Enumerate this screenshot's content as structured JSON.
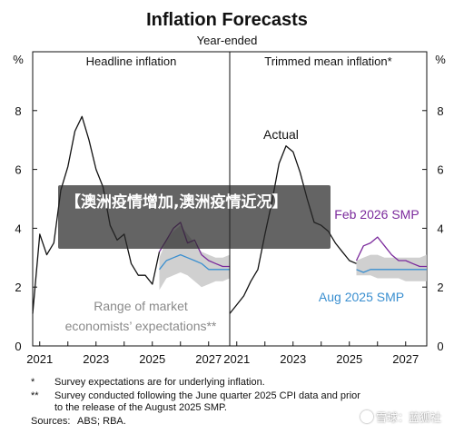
{
  "title": "Inflation Forecasts",
  "subtitle": "Year-ended",
  "unit_left": "%",
  "unit_right": "%",
  "footnotes": [
    {
      "mark": "*",
      "text": "Survey expectations are for underlying inflation."
    },
    {
      "mark": "**",
      "text": "Survey conducted following the June quarter 2025 CPI data and prior"
    },
    {
      "mark": "",
      "text": "to the release of the August 2025 SMP."
    },
    {
      "mark": "Sources:",
      "text": "ABS; RBA."
    }
  ],
  "banner": {
    "text": "【澳洲疫情增加,澳洲疫情近况】"
  },
  "watermark": {
    "text": "雪球：蓝狐社"
  },
  "colors": {
    "actual": "#111111",
    "feb": "#7b2a9c",
    "aug": "#3a8fd0",
    "range": "#c8c8c8",
    "annotation": "#8a8a8a"
  },
  "chart_data": [
    {
      "type": "line",
      "title": "Headline inflation",
      "xlim": [
        2020.75,
        2027.75
      ],
      "ylim": [
        0,
        10
      ],
      "yticks": [
        0,
        2,
        4,
        6,
        8
      ],
      "xticks": [
        2021,
        2023,
        2025,
        2027
      ],
      "grid": false,
      "annotations": [
        "Range of market",
        "economists’ expectations**"
      ],
      "range": {
        "x": [
          2025.25,
          2025.5,
          2025.75,
          2026.0,
          2026.25,
          2026.5,
          2026.75,
          2027.0,
          2027.25,
          2027.5,
          2027.75
        ],
        "low": [
          1.9,
          2.3,
          2.4,
          2.5,
          2.4,
          2.2,
          2.0,
          2.1,
          2.2,
          2.2,
          2.3
        ],
        "high": [
          3.0,
          3.6,
          3.9,
          4.1,
          3.8,
          3.5,
          3.2,
          3.1,
          3.0,
          3.0,
          3.1
        ]
      },
      "series": [
        {
          "key": "actual",
          "x": [
            2020.75,
            2021.0,
            2021.25,
            2021.5,
            2021.75,
            2022.0,
            2022.25,
            2022.5,
            2022.75,
            2023.0,
            2023.25,
            2023.5,
            2023.75,
            2024.0,
            2024.25,
            2024.5,
            2024.75,
            2025.0,
            2025.25
          ],
          "values": [
            1.1,
            3.8,
            3.1,
            3.5,
            5.3,
            6.1,
            7.3,
            7.8,
            7.0,
            6.0,
            5.4,
            4.1,
            3.6,
            3.8,
            2.8,
            2.4,
            2.4,
            2.1,
            3.2
          ]
        },
        {
          "key": "feb",
          "x": [
            2025.25,
            2025.5,
            2025.75,
            2026.0,
            2026.25,
            2026.5,
            2026.75,
            2027.0,
            2027.25,
            2027.5,
            2027.75
          ],
          "values": [
            3.2,
            3.6,
            4.0,
            4.2,
            3.5,
            3.6,
            3.1,
            2.9,
            2.8,
            2.7,
            2.7
          ]
        },
        {
          "key": "aug",
          "x": [
            2025.25,
            2025.5,
            2025.75,
            2026.0,
            2026.25,
            2026.5,
            2026.75,
            2027.0,
            2027.25,
            2027.5,
            2027.75
          ],
          "values": [
            2.6,
            2.9,
            3.0,
            3.1,
            3.0,
            2.9,
            2.8,
            2.6,
            2.6,
            2.6,
            2.6
          ]
        }
      ]
    },
    {
      "type": "line",
      "title": "Trimmed mean inflation*",
      "xlim": [
        2020.75,
        2027.75
      ],
      "ylim": [
        0,
        10
      ],
      "yticks": [
        0,
        2,
        4,
        6,
        8
      ],
      "xticks": [
        2021,
        2023,
        2025,
        2027
      ],
      "grid": false,
      "annotations": [
        "Actual"
      ],
      "range": {
        "x": [
          2025.25,
          2025.5,
          2025.75,
          2026.0,
          2026.25,
          2026.5,
          2026.75,
          2027.0,
          2027.25,
          2027.5,
          2027.75
        ],
        "low": [
          2.4,
          2.4,
          2.4,
          2.3,
          2.3,
          2.3,
          2.3,
          2.2,
          2.2,
          2.2,
          2.2
        ],
        "high": [
          2.9,
          3.0,
          3.1,
          3.1,
          3.0,
          3.0,
          3.0,
          3.0,
          3.0,
          3.0,
          3.1
        ]
      },
      "series": [
        {
          "key": "actual",
          "x": [
            2020.75,
            2021.0,
            2021.25,
            2021.5,
            2021.75,
            2022.0,
            2022.25,
            2022.5,
            2022.75,
            2023.0,
            2023.25,
            2023.5,
            2023.75,
            2024.0,
            2024.25,
            2024.5,
            2024.75,
            2025.0,
            2025.25
          ],
          "values": [
            1.1,
            1.4,
            1.7,
            2.2,
            2.6,
            3.8,
            4.9,
            6.2,
            6.8,
            6.6,
            5.9,
            5.0,
            4.2,
            4.1,
            3.9,
            3.5,
            3.2,
            2.9,
            2.8
          ],
          "name": "Actual"
        },
        {
          "key": "feb",
          "x": [
            2025.25,
            2025.5,
            2025.75,
            2026.0,
            2026.25,
            2026.5,
            2026.75,
            2027.0,
            2027.25,
            2027.5,
            2027.75
          ],
          "values": [
            2.9,
            3.4,
            3.5,
            3.7,
            3.4,
            3.1,
            2.9,
            2.9,
            2.8,
            2.7,
            2.7
          ],
          "name": "Feb 2026 SMP"
        },
        {
          "key": "aug",
          "x": [
            2025.25,
            2025.5,
            2025.75,
            2026.0,
            2026.25,
            2026.5,
            2026.75,
            2027.0,
            2027.25,
            2027.5,
            2027.75
          ],
          "values": [
            2.6,
            2.5,
            2.6,
            2.6,
            2.6,
            2.6,
            2.6,
            2.6,
            2.6,
            2.6,
            2.6
          ],
          "name": "Aug 2025 SMP"
        }
      ]
    }
  ]
}
